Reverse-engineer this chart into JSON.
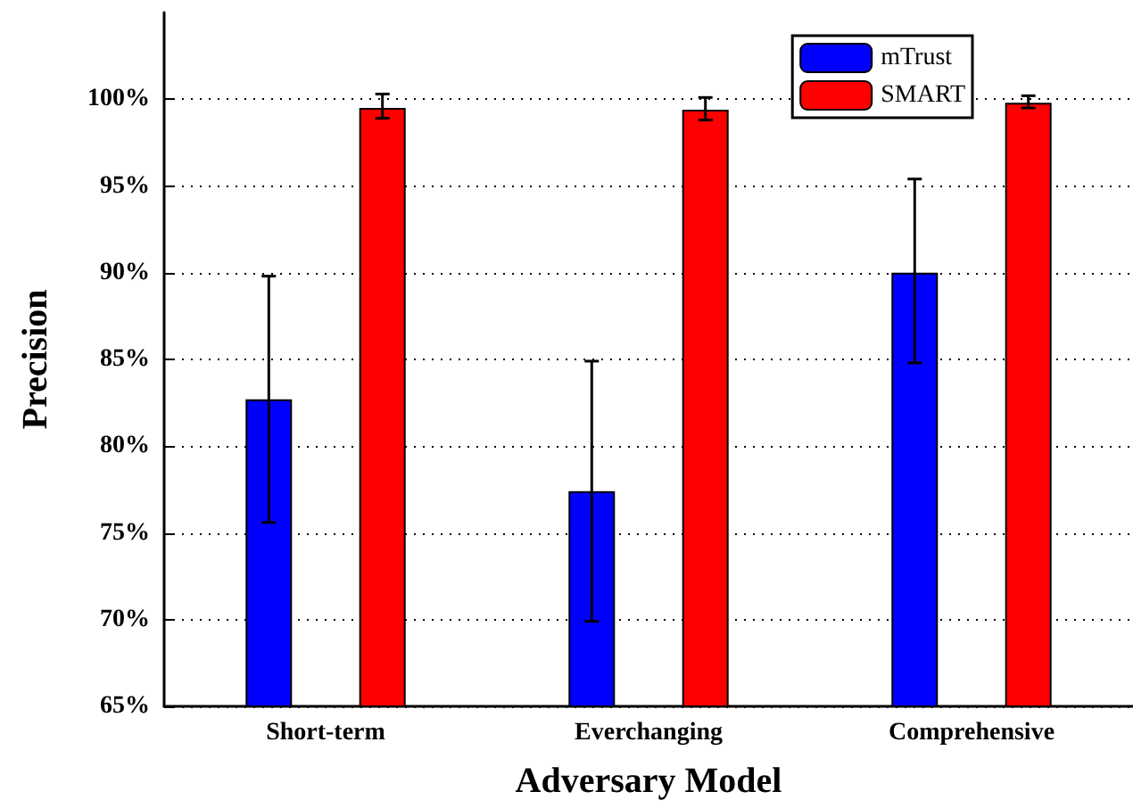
{
  "chart_data": {
    "type": "bar",
    "xlabel": "Adversary Model",
    "ylabel": "Precision",
    "categories": [
      "Short-term",
      "Everchanging",
      "Comprehensive"
    ],
    "series": [
      {
        "name": "mTrust",
        "color": "#0000ff",
        "values": [
          82.7,
          77.4,
          90.0
        ],
        "errors": [
          [
            75.6,
            89.8
          ],
          [
            69.9,
            84.9
          ],
          [
            84.8,
            95.4
          ]
        ]
      },
      {
        "name": "SMART",
        "color": "#ff0000",
        "values": [
          99.5,
          99.4,
          99.8
        ],
        "errors": [
          [
            98.9,
            100.3
          ],
          [
            98.8,
            100.1
          ],
          [
            99.5,
            100.2
          ]
        ]
      }
    ],
    "ylim": [
      65,
      105
    ],
    "yticks": [
      {
        "value": 65,
        "label": "65%"
      },
      {
        "value": 70,
        "label": "70%"
      },
      {
        "value": 75,
        "label": "75%"
      },
      {
        "value": 80,
        "label": "80%"
      },
      {
        "value": 85,
        "label": "85%"
      },
      {
        "value": 90,
        "label": "90%"
      },
      {
        "value": 95,
        "label": "95%"
      },
      {
        "value": 100,
        "label": "100%"
      }
    ],
    "grid": "y",
    "legend": "top right"
  }
}
